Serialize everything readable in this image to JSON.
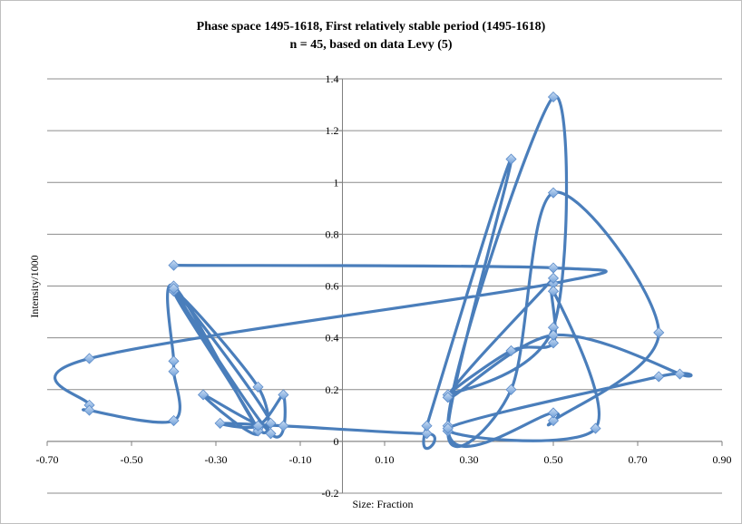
{
  "chart_data": {
    "type": "scatter",
    "title": "Phase space 1495-1618, First relatively stable period (1495-1618)",
    "subtitle": "n = 45, based on data Levy (5)",
    "xlabel": "Size: Fraction",
    "ylabel": "Intensity/1000",
    "xlim": [
      -0.7,
      0.9
    ],
    "ylim": [
      -0.2,
      1.4
    ],
    "x_ticks": [
      "-0.70",
      "-0.50",
      "-0.30",
      "-0.10",
      "0.10",
      "0.30",
      "0.50",
      "0.70",
      "0.90"
    ],
    "y_ticks": [
      "-0.2",
      "0",
      "0.2",
      "0.4",
      "0.6",
      "0.8",
      "1",
      "1.2",
      "1.4"
    ],
    "grid": "horizontal",
    "smoothed": true,
    "series_color": "#4a7ebb",
    "marker": "diamond",
    "points": [
      {
        "x": -0.4,
        "y": 0.68
      },
      {
        "x": 0.5,
        "y": 0.67
      },
      {
        "x": 0.5,
        "y": 0.61
      },
      {
        "x": -0.6,
        "y": 0.32
      },
      {
        "x": -0.6,
        "y": 0.14
      },
      {
        "x": -0.6,
        "y": 0.12
      },
      {
        "x": -0.4,
        "y": 0.08
      },
      {
        "x": -0.4,
        "y": 0.27
      },
      {
        "x": -0.4,
        "y": 0.31
      },
      {
        "x": -0.4,
        "y": 0.6
      },
      {
        "x": -0.2,
        "y": 0.05
      },
      {
        "x": -0.2,
        "y": 0.21
      },
      {
        "x": -0.4,
        "y": 0.58
      },
      {
        "x": -0.2,
        "y": 0.04
      },
      {
        "x": -0.33,
        "y": 0.18
      },
      {
        "x": -0.17,
        "y": 0.07
      },
      {
        "x": -0.4,
        "y": 0.59
      },
      {
        "x": -0.17,
        "y": 0.03
      },
      {
        "x": -0.14,
        "y": 0.18
      },
      {
        "x": -0.2,
        "y": 0.06
      },
      {
        "x": -0.29,
        "y": 0.07
      },
      {
        "x": -0.14,
        "y": 0.06
      },
      {
        "x": 0.2,
        "y": 0.03
      },
      {
        "x": 0.2,
        "y": 0.06
      },
      {
        "x": 0.4,
        "y": 1.09
      },
      {
        "x": 0.25,
        "y": 0.04
      },
      {
        "x": 0.4,
        "y": 0.2
      },
      {
        "x": 0.5,
        "y": 0.96
      },
      {
        "x": 0.75,
        "y": 0.42
      },
      {
        "x": 0.5,
        "y": 0.08
      },
      {
        "x": 0.5,
        "y": 0.11
      },
      {
        "x": 0.25,
        "y": 0.06
      },
      {
        "x": 0.5,
        "y": 1.33
      },
      {
        "x": 0.5,
        "y": 0.44
      },
      {
        "x": 0.25,
        "y": 0.18
      },
      {
        "x": 0.4,
        "y": 0.35
      },
      {
        "x": 0.5,
        "y": 0.38
      },
      {
        "x": 0.5,
        "y": 0.58
      },
      {
        "x": 0.6,
        "y": 0.05
      },
      {
        "x": 0.25,
        "y": 0.05
      },
      {
        "x": 0.75,
        "y": 0.25
      },
      {
        "x": 0.8,
        "y": 0.26
      },
      {
        "x": 0.5,
        "y": 0.41
      },
      {
        "x": 0.25,
        "y": 0.17
      },
      {
        "x": 0.5,
        "y": 0.63
      }
    ]
  }
}
